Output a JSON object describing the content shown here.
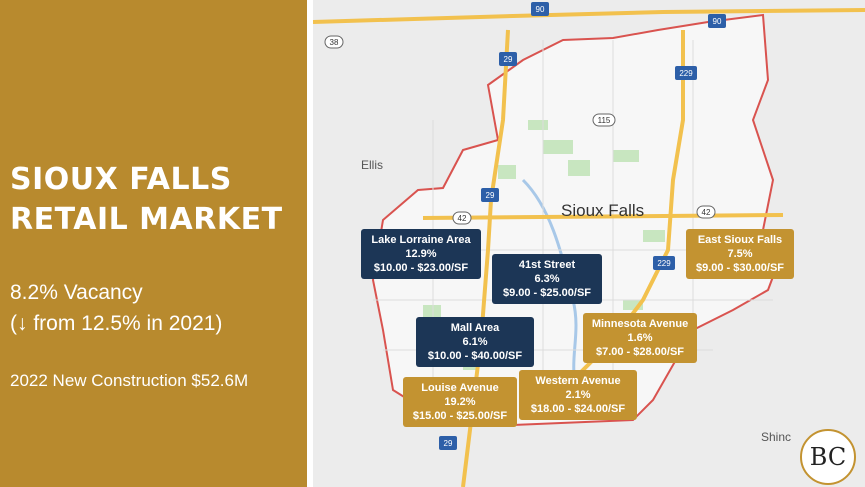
{
  "panel": {
    "title_line1": "SIOUX FALLS",
    "title_line2": "RETAIL MARKET",
    "vacancy": "8.2% Vacancy",
    "vacancy_change": "(↓ from 12.5% in 2021)",
    "new_construction": "2022 New Construction $52.6M",
    "background_color": "#b88a2e"
  },
  "map": {
    "city_label": "Sioux Falls",
    "place_labels": [
      "Ellis",
      "Shinc"
    ],
    "highway_shields": [
      "90",
      "90",
      "38",
      "29",
      "229",
      "115",
      "29",
      "42",
      "42",
      "229",
      "29"
    ]
  },
  "callouts": [
    {
      "area": "Lake Lorraine Area",
      "vacancy": "12.9%",
      "rent": "$10.00 - $23.00/SF",
      "color": "navy"
    },
    {
      "area": "41st Street",
      "vacancy": "6.3%",
      "rent": "$9.00 - $25.00/SF",
      "color": "navy"
    },
    {
      "area": "East Sioux Falls",
      "vacancy": "7.5%",
      "rent": "$9.00 - $30.00/SF",
      "color": "gold"
    },
    {
      "area": "Mall Area",
      "vacancy": "6.1%",
      "rent": "$10.00 - $40.00/SF",
      "color": "navy"
    },
    {
      "area": "Minnesota Avenue",
      "vacancy": "1.6%",
      "rent": "$7.00 - $28.00/SF",
      "color": "gold"
    },
    {
      "area": "Louise Avenue",
      "vacancy": "19.2%",
      "rent": "$15.00 - $25.00/SF",
      "color": "gold"
    },
    {
      "area": "Western Avenue",
      "vacancy": "2.1%",
      "rent": "$18.00 - $24.00/SF",
      "color": "gold"
    }
  ],
  "logo": {
    "text": "BC"
  },
  "colors": {
    "navy": "#1c3656",
    "gold": "#c39331",
    "boundary": "#d9534f",
    "highway": "#f2c14e"
  }
}
